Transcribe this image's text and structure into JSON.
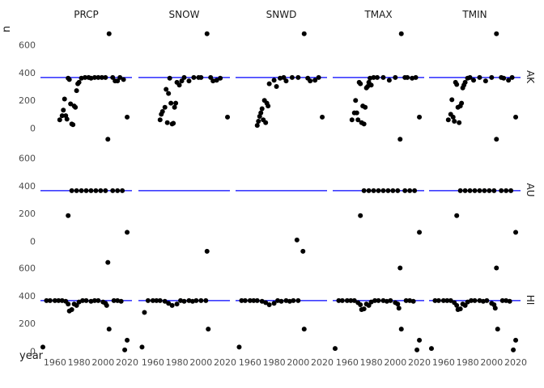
{
  "chart_data": {
    "type": "scatter",
    "title": "",
    "xlabel": "year",
    "ylabel": "n",
    "x_ticks": [
      1960,
      1980,
      2000,
      2020
    ],
    "y_ticks": [
      0,
      200,
      400,
      600
    ],
    "xlim": [
      1948,
      2024
    ],
    "ylim": [
      -20,
      760
    ],
    "reference_line": {
      "y": 365,
      "color": "#0000ff"
    },
    "point_color": "#000000",
    "grid": false,
    "columns": [
      "PRCP",
      "SNOW",
      "SNWD",
      "TMAX",
      "TMIN"
    ],
    "rows": [
      "AK",
      "AU",
      "HI"
    ],
    "panels": [
      {
        "row": "AK",
        "col": "PRCP",
        "points": [
          [
            1964,
            60
          ],
          [
            1966,
            90
          ],
          [
            1967,
            130
          ],
          [
            1968,
            210
          ],
          [
            1969,
            90
          ],
          [
            1970,
            65
          ],
          [
            1971,
            360
          ],
          [
            1972,
            350
          ],
          [
            1973,
            175
          ],
          [
            1974,
            30
          ],
          [
            1975,
            25
          ],
          [
            1976,
            160
          ],
          [
            1977,
            150
          ],
          [
            1978,
            270
          ],
          [
            1979,
            320
          ],
          [
            1980,
            330
          ],
          [
            1982,
            360
          ],
          [
            1985,
            365
          ],
          [
            1988,
            365
          ],
          [
            1990,
            360
          ],
          [
            1993,
            365
          ],
          [
            1996,
            365
          ],
          [
            1999,
            365
          ],
          [
            2002,
            365
          ],
          [
            2005,
            680
          ],
          [
            2008,
            365
          ],
          [
            2010,
            340
          ],
          [
            2012,
            340
          ],
          [
            2014,
            365
          ],
          [
            2017,
            350
          ],
          [
            2020,
            80
          ]
        ]
      },
      {
        "row": "AK",
        "col": "SNOW",
        "points": [
          [
            1966,
            60
          ],
          [
            1967,
            100
          ],
          [
            1968,
            120
          ],
          [
            1970,
            150
          ],
          [
            1971,
            280
          ],
          [
            1972,
            40
          ],
          [
            1973,
            250
          ],
          [
            1974,
            360
          ],
          [
            1975,
            180
          ],
          [
            1976,
            30
          ],
          [
            1977,
            35
          ],
          [
            1978,
            150
          ],
          [
            1979,
            180
          ],
          [
            1980,
            330
          ],
          [
            1982,
            310
          ],
          [
            1984,
            340
          ],
          [
            1986,
            365
          ],
          [
            1990,
            340
          ],
          [
            1994,
            365
          ],
          [
            1998,
            365
          ],
          [
            2000,
            365
          ],
          [
            2005,
            680
          ],
          [
            2008,
            365
          ],
          [
            2010,
            340
          ],
          [
            2013,
            345
          ],
          [
            2016,
            360
          ],
          [
            2022,
            80
          ]
        ]
      },
      {
        "row": "AK",
        "col": "SNWD",
        "points": [
          [
            1966,
            20
          ],
          [
            1967,
            50
          ],
          [
            1968,
            85
          ],
          [
            1969,
            110
          ],
          [
            1970,
            140
          ],
          [
            1971,
            60
          ],
          [
            1972,
            200
          ],
          [
            1973,
            40
          ],
          [
            1974,
            180
          ],
          [
            1975,
            160
          ],
          [
            1976,
            320
          ],
          [
            1980,
            345
          ],
          [
            1982,
            300
          ],
          [
            1985,
            360
          ],
          [
            1988,
            365
          ],
          [
            1990,
            340
          ],
          [
            1995,
            365
          ],
          [
            2000,
            365
          ],
          [
            2005,
            680
          ],
          [
            2008,
            360
          ],
          [
            2010,
            340
          ],
          [
            2014,
            345
          ],
          [
            2017,
            365
          ],
          [
            2020,
            80
          ]
        ]
      },
      {
        "row": "AK",
        "col": "TMAX",
        "points": [
          [
            1964,
            60
          ],
          [
            1966,
            110
          ],
          [
            1967,
            200
          ],
          [
            1968,
            110
          ],
          [
            1969,
            60
          ],
          [
            1970,
            330
          ],
          [
            1971,
            320
          ],
          [
            1972,
            40
          ],
          [
            1973,
            160
          ],
          [
            1974,
            30
          ],
          [
            1975,
            150
          ],
          [
            1976,
            290
          ],
          [
            1977,
            300
          ],
          [
            1978,
            330
          ],
          [
            1979,
            360
          ],
          [
            1980,
            310
          ],
          [
            1982,
            365
          ],
          [
            1985,
            365
          ],
          [
            1990,
            365
          ],
          [
            1995,
            345
          ],
          [
            2000,
            365
          ],
          [
            2005,
            680
          ],
          [
            2008,
            365
          ],
          [
            2010,
            365
          ],
          [
            2014,
            360
          ],
          [
            2017,
            365
          ],
          [
            2020,
            80
          ]
        ]
      },
      {
        "row": "AK",
        "col": "TMIN",
        "points": [
          [
            1964,
            60
          ],
          [
            1966,
            100
          ],
          [
            1967,
            205
          ],
          [
            1968,
            80
          ],
          [
            1969,
            50
          ],
          [
            1970,
            330
          ],
          [
            1971,
            315
          ],
          [
            1972,
            150
          ],
          [
            1973,
            40
          ],
          [
            1974,
            160
          ],
          [
            1975,
            180
          ],
          [
            1976,
            290
          ],
          [
            1977,
            310
          ],
          [
            1978,
            330
          ],
          [
            1980,
            360
          ],
          [
            1982,
            365
          ],
          [
            1985,
            345
          ],
          [
            1990,
            365
          ],
          [
            1995,
            340
          ],
          [
            2000,
            365
          ],
          [
            2004,
            680
          ],
          [
            2008,
            365
          ],
          [
            2010,
            360
          ],
          [
            2014,
            345
          ],
          [
            2017,
            365
          ],
          [
            2020,
            80
          ]
        ]
      },
      {
        "row": "AU",
        "col": "PRCP",
        "points": [
          [
            1971,
            185
          ],
          [
            1974,
            365
          ],
          [
            1978,
            365
          ],
          [
            1982,
            365
          ],
          [
            1986,
            365
          ],
          [
            1990,
            365
          ],
          [
            1994,
            365
          ],
          [
            1998,
            365
          ],
          [
            2002,
            365
          ],
          [
            2004,
            735
          ],
          [
            2008,
            365
          ],
          [
            2012,
            365
          ],
          [
            2016,
            365
          ],
          [
            2020,
            65
          ]
        ]
      },
      {
        "row": "AU",
        "col": "SNOW",
        "points": []
      },
      {
        "row": "AU",
        "col": "SNWD",
        "points": [
          [
            1999,
            10
          ]
        ]
      },
      {
        "row": "AU",
        "col": "TMAX",
        "points": [
          [
            1971,
            185
          ],
          [
            1974,
            365
          ],
          [
            1978,
            365
          ],
          [
            1982,
            365
          ],
          [
            1986,
            365
          ],
          [
            1990,
            365
          ],
          [
            1994,
            365
          ],
          [
            1998,
            365
          ],
          [
            2002,
            365
          ],
          [
            2004,
            735
          ],
          [
            2008,
            365
          ],
          [
            2012,
            365
          ],
          [
            2016,
            365
          ],
          [
            2020,
            65
          ]
        ]
      },
      {
        "row": "AU",
        "col": "TMIN",
        "points": [
          [
            1971,
            185
          ],
          [
            1974,
            365
          ],
          [
            1978,
            365
          ],
          [
            1982,
            365
          ],
          [
            1986,
            365
          ],
          [
            1990,
            365
          ],
          [
            1994,
            365
          ],
          [
            1998,
            365
          ],
          [
            2002,
            365
          ],
          [
            2004,
            735
          ],
          [
            2008,
            365
          ],
          [
            2012,
            365
          ],
          [
            2016,
            365
          ],
          [
            2020,
            65
          ]
        ]
      },
      {
        "row": "HI",
        "col": "PRCP",
        "points": [
          [
            1950,
            30
          ],
          [
            1953,
            365
          ],
          [
            1956,
            365
          ],
          [
            1960,
            365
          ],
          [
            1963,
            365
          ],
          [
            1966,
            365
          ],
          [
            1969,
            360
          ],
          [
            1971,
            340
          ],
          [
            1972,
            290
          ],
          [
            1974,
            300
          ],
          [
            1976,
            340
          ],
          [
            1978,
            330
          ],
          [
            1980,
            355
          ],
          [
            1983,
            365
          ],
          [
            1986,
            365
          ],
          [
            1990,
            360
          ],
          [
            1993,
            365
          ],
          [
            1996,
            365
          ],
          [
            2000,
            355
          ],
          [
            2002,
            345
          ],
          [
            2003,
            330
          ],
          [
            2004,
            640
          ],
          [
            2005,
            160
          ],
          [
            2009,
            365
          ],
          [
            2012,
            365
          ],
          [
            2015,
            360
          ],
          [
            2018,
            10
          ],
          [
            2020,
            80
          ]
        ]
      },
      {
        "row": "HI",
        "col": "SNOW",
        "points": [
          [
            1953,
            280
          ],
          [
            1956,
            365
          ],
          [
            1960,
            365
          ],
          [
            1963,
            365
          ],
          [
            1966,
            365
          ],
          [
            1970,
            360
          ],
          [
            1973,
            345
          ],
          [
            1976,
            330
          ],
          [
            1980,
            340
          ],
          [
            1983,
            365
          ],
          [
            1986,
            360
          ],
          [
            1990,
            365
          ],
          [
            1993,
            360
          ],
          [
            1996,
            365
          ],
          [
            2000,
            365
          ],
          [
            2004,
            365
          ],
          [
            2005,
            720
          ],
          [
            2006,
            160
          ],
          [
            1951,
            30
          ]
        ]
      },
      {
        "row": "HI",
        "col": "SNWD",
        "points": [
          [
            1951,
            30
          ],
          [
            1953,
            365
          ],
          [
            1956,
            365
          ],
          [
            1960,
            365
          ],
          [
            1963,
            365
          ],
          [
            1966,
            365
          ],
          [
            1970,
            360
          ],
          [
            1973,
            350
          ],
          [
            1976,
            335
          ],
          [
            1980,
            345
          ],
          [
            1983,
            365
          ],
          [
            1986,
            360
          ],
          [
            1990,
            365
          ],
          [
            1993,
            360
          ],
          [
            1996,
            365
          ],
          [
            2000,
            365
          ],
          [
            2004,
            720
          ],
          [
            2005,
            160
          ]
        ]
      },
      {
        "row": "HI",
        "col": "TMAX",
        "points": [
          [
            1950,
            20
          ],
          [
            1953,
            365
          ],
          [
            1956,
            365
          ],
          [
            1960,
            365
          ],
          [
            1963,
            365
          ],
          [
            1966,
            365
          ],
          [
            1969,
            350
          ],
          [
            1971,
            335
          ],
          [
            1972,
            300
          ],
          [
            1974,
            305
          ],
          [
            1976,
            340
          ],
          [
            1978,
            330
          ],
          [
            1980,
            355
          ],
          [
            1983,
            365
          ],
          [
            1986,
            365
          ],
          [
            1990,
            365
          ],
          [
            1993,
            360
          ],
          [
            1996,
            365
          ],
          [
            2000,
            350
          ],
          [
            2002,
            340
          ],
          [
            2003,
            310
          ],
          [
            2004,
            600
          ],
          [
            2005,
            160
          ],
          [
            2009,
            365
          ],
          [
            2012,
            365
          ],
          [
            2015,
            360
          ],
          [
            2018,
            10
          ],
          [
            2020,
            80
          ]
        ]
      },
      {
        "row": "HI",
        "col": "TMIN",
        "points": [
          [
            1950,
            20
          ],
          [
            1953,
            365
          ],
          [
            1956,
            365
          ],
          [
            1960,
            365
          ],
          [
            1963,
            365
          ],
          [
            1966,
            365
          ],
          [
            1969,
            350
          ],
          [
            1971,
            330
          ],
          [
            1972,
            300
          ],
          [
            1974,
            305
          ],
          [
            1976,
            340
          ],
          [
            1978,
            330
          ],
          [
            1980,
            355
          ],
          [
            1983,
            365
          ],
          [
            1986,
            365
          ],
          [
            1990,
            365
          ],
          [
            1993,
            360
          ],
          [
            1996,
            365
          ],
          [
            2000,
            345
          ],
          [
            2002,
            335
          ],
          [
            2003,
            310
          ],
          [
            2004,
            600
          ],
          [
            2005,
            160
          ],
          [
            2009,
            365
          ],
          [
            2012,
            365
          ],
          [
            2015,
            360
          ],
          [
            2018,
            10
          ],
          [
            2020,
            80
          ]
        ]
      }
    ]
  }
}
